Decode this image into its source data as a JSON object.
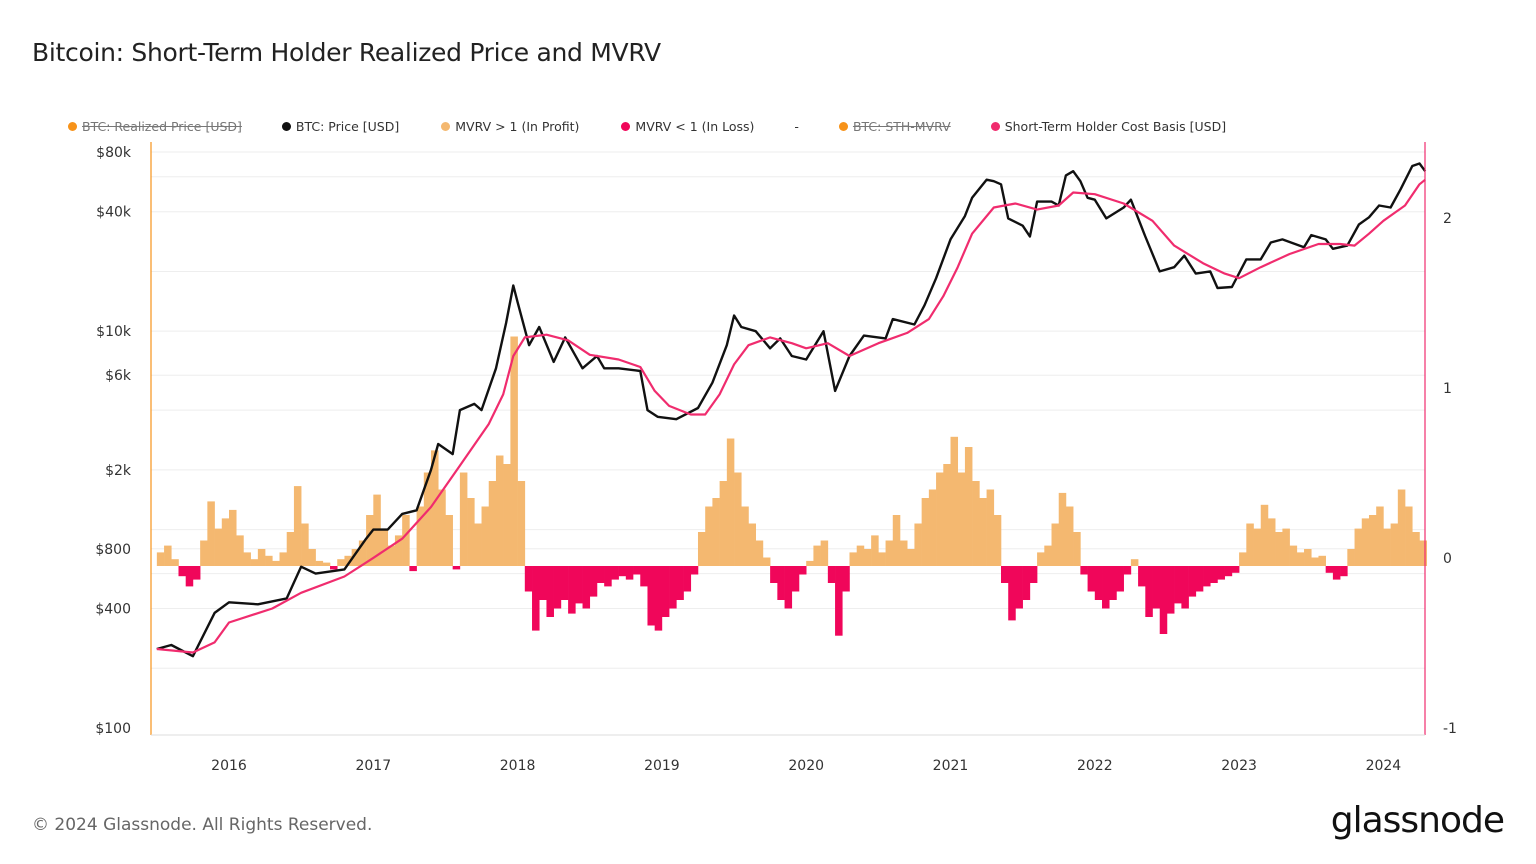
{
  "title": "Bitcoin: Short-Term Holder Realized Price and MVRV",
  "legend": [
    {
      "label": "BTC: Realized Price [USD]",
      "color": "#F7931A",
      "hidden": true
    },
    {
      "label": "BTC: Price [USD]",
      "color": "#111111",
      "hidden": false
    },
    {
      "label": "MVRV > 1 (In Profit)",
      "color": "#F4B870",
      "hidden": false
    },
    {
      "label": "MVRV < 1 (In Loss)",
      "color": "#F0065A",
      "hidden": false
    },
    {
      "label": "-",
      "color": "",
      "hidden": false
    },
    {
      "label": "BTC: STH-MVRV",
      "color": "#F7931A",
      "hidden": true
    },
    {
      "label": "Short-Term Holder Cost Basis [USD]",
      "color": "#F02C6E",
      "hidden": false
    }
  ],
  "footer": "© 2024 Glassnode. All Rights Reserved.",
  "logo": "glassnode",
  "chart_data": {
    "type": "line",
    "title": "Bitcoin: Short-Term Holder Realized Price and MVRV",
    "x_range": [
      2015.46,
      2024.29
    ],
    "x_ticks": [
      "2016",
      "2017",
      "2018",
      "2019",
      "2020",
      "2021",
      "2022",
      "2023",
      "2024"
    ],
    "y_left": {
      "scale": "log",
      "range": [
        100,
        100000
      ],
      "ticks": [
        {
          "v": 80000,
          "label": "$80k"
        },
        {
          "v": 40000,
          "label": "$40k"
        },
        {
          "v": 10000,
          "label": "$10k"
        },
        {
          "v": 6000,
          "label": "$6k"
        },
        {
          "v": 2000,
          "label": "$2k"
        },
        {
          "v": 800,
          "label": "$800"
        },
        {
          "v": 400,
          "label": "$400"
        },
        {
          "v": 100,
          "label": "$100"
        }
      ]
    },
    "y_right": {
      "scale": "linear",
      "range": [
        -1,
        2.5
      ],
      "ticks": [
        "2",
        "1",
        "0",
        "-1"
      ]
    },
    "grid": true,
    "legend_position": "top",
    "series": [
      {
        "name": "BTC: Price [USD]",
        "axis": "left",
        "color": "#111111",
        "x": [
          2015.5,
          2015.6,
          2015.75,
          2015.9,
          2016.0,
          2016.2,
          2016.4,
          2016.5,
          2016.6,
          2016.8,
          2016.95,
          2017.0,
          2017.1,
          2017.2,
          2017.3,
          2017.4,
          2017.45,
          2017.55,
          2017.6,
          2017.7,
          2017.75,
          2017.85,
          2017.92,
          2017.97,
          2018.0,
          2018.08,
          2018.15,
          2018.25,
          2018.33,
          2018.45,
          2018.55,
          2018.6,
          2018.7,
          2018.85,
          2018.9,
          2018.97,
          2019.1,
          2019.25,
          2019.35,
          2019.45,
          2019.5,
          2019.55,
          2019.65,
          2019.75,
          2019.82,
          2019.9,
          2020.0,
          2020.12,
          2020.2,
          2020.3,
          2020.4,
          2020.55,
          2020.6,
          2020.75,
          2020.82,
          2020.9,
          2021.0,
          2021.1,
          2021.15,
          2021.25,
          2021.3,
          2021.35,
          2021.4,
          2021.5,
          2021.55,
          2021.6,
          2021.7,
          2021.75,
          2021.8,
          2021.85,
          2021.9,
          2021.95,
          2022.0,
          2022.08,
          2022.2,
          2022.25,
          2022.35,
          2022.45,
          2022.55,
          2022.62,
          2022.7,
          2022.8,
          2022.85,
          2022.95,
          2023.05,
          2023.15,
          2023.22,
          2023.3,
          2023.45,
          2023.5,
          2023.6,
          2023.65,
          2023.75,
          2023.83,
          2023.9,
          2023.97,
          2024.05,
          2024.12,
          2024.2,
          2024.25,
          2024.29
        ],
        "values": [
          250,
          262,
          230,
          380,
          430,
          420,
          450,
          650,
          600,
          630,
          900,
          1000,
          1000,
          1200,
          1250,
          2000,
          2700,
          2400,
          4000,
          4300,
          4000,
          6500,
          11000,
          17000,
          14000,
          8500,
          10500,
          7000,
          9300,
          6500,
          7500,
          6500,
          6500,
          6300,
          4000,
          3700,
          3600,
          4100,
          5500,
          8500,
          12000,
          10500,
          10000,
          8200,
          9200,
          7500,
          7200,
          10000,
          5000,
          7500,
          9500,
          9200,
          11500,
          10800,
          13500,
          18500,
          29000,
          38000,
          47000,
          58000,
          57000,
          55000,
          37000,
          34000,
          30000,
          45000,
          45000,
          43000,
          61000,
          64000,
          57000,
          47000,
          46000,
          37000,
          42000,
          46000,
          30000,
          20000,
          21000,
          24000,
          19500,
          20000,
          16500,
          16700,
          23000,
          23000,
          28000,
          29000,
          26500,
          30500,
          29000,
          26000,
          27000,
          34500,
          37500,
          43000,
          42000,
          52000,
          68000,
          70000,
          64000
        ]
      },
      {
        "name": "Short-Term Holder Cost Basis [USD]",
        "axis": "left",
        "color": "#F02C6E",
        "x": [
          2015.5,
          2015.75,
          2015.9,
          2016.0,
          2016.3,
          2016.5,
          2016.8,
          2017.0,
          2017.2,
          2017.4,
          2017.6,
          2017.8,
          2017.9,
          2017.97,
          2018.05,
          2018.2,
          2018.35,
          2018.5,
          2018.7,
          2018.85,
          2018.95,
          2019.05,
          2019.2,
          2019.3,
          2019.4,
          2019.5,
          2019.6,
          2019.75,
          2019.9,
          2020.0,
          2020.15,
          2020.3,
          2020.5,
          2020.7,
          2020.85,
          2020.95,
          2021.05,
          2021.15,
          2021.3,
          2021.45,
          2021.6,
          2021.75,
          2021.85,
          2022.0,
          2022.2,
          2022.4,
          2022.55,
          2022.75,
          2022.9,
          2023.0,
          2023.15,
          2023.35,
          2023.55,
          2023.7,
          2023.8,
          2023.9,
          2024.0,
          2024.15,
          2024.25,
          2024.29
        ],
        "values": [
          250,
          240,
          270,
          340,
          400,
          480,
          580,
          720,
          900,
          1300,
          2100,
          3400,
          4800,
          7500,
          9300,
          9600,
          9000,
          7600,
          7200,
          6600,
          5000,
          4200,
          3800,
          3800,
          4800,
          6800,
          8500,
          9300,
          8700,
          8200,
          8700,
          7500,
          8700,
          9800,
          11500,
          15000,
          21000,
          31000,
          42000,
          44000,
          41000,
          43000,
          50000,
          49000,
          44000,
          36000,
          27000,
          22000,
          19500,
          18500,
          21000,
          24500,
          27500,
          27500,
          27000,
          31000,
          36000,
          43000,
          55000,
          58000
        ]
      },
      {
        "name": "BTC: STH-MVRV",
        "axis": "right",
        "type": "bar",
        "positive_label": "MVRV > 1 (In Profit)",
        "negative_label": "MVRV < 1 (In Loss)",
        "x_start": 2015.5,
        "x_step": 0.05,
        "values": [
          0.08,
          0.12,
          0.04,
          -0.06,
          -0.12,
          -0.08,
          0.15,
          0.38,
          0.22,
          0.28,
          0.33,
          0.18,
          0.08,
          0.04,
          0.1,
          0.06,
          0.03,
          0.08,
          0.2,
          0.47,
          0.25,
          0.1,
          0.03,
          0.02,
          -0.02,
          0.04,
          0.06,
          0.1,
          0.15,
          0.3,
          0.42,
          0.22,
          0.12,
          0.18,
          0.3,
          -0.03,
          0.35,
          0.55,
          0.68,
          0.45,
          0.3,
          -0.02,
          0.55,
          0.4,
          0.25,
          0.35,
          0.5,
          0.65,
          0.6,
          1.35,
          0.5,
          -0.15,
          -0.38,
          -0.2,
          -0.3,
          -0.25,
          -0.2,
          -0.28,
          -0.22,
          -0.25,
          -0.18,
          -0.1,
          -0.12,
          -0.08,
          -0.06,
          -0.08,
          -0.05,
          -0.12,
          -0.35,
          -0.38,
          -0.3,
          -0.25,
          -0.2,
          -0.15,
          -0.05,
          0.2,
          0.35,
          0.4,
          0.5,
          0.75,
          0.55,
          0.35,
          0.25,
          0.15,
          0.05,
          -0.1,
          -0.2,
          -0.25,
          -0.15,
          -0.05,
          0.03,
          0.12,
          0.15,
          -0.1,
          -0.41,
          -0.15,
          0.08,
          0.12,
          0.1,
          0.18,
          0.08,
          0.15,
          0.3,
          0.15,
          0.1,
          0.25,
          0.4,
          0.45,
          0.55,
          0.6,
          0.76,
          0.55,
          0.7,
          0.5,
          0.4,
          0.45,
          0.3,
          -0.1,
          -0.32,
          -0.25,
          -0.2,
          -0.1,
          0.08,
          0.12,
          0.25,
          0.43,
          0.35,
          0.2,
          -0.05,
          -0.15,
          -0.2,
          -0.25,
          -0.2,
          -0.15,
          -0.05,
          0.04,
          -0.12,
          -0.3,
          -0.25,
          -0.4,
          -0.28,
          -0.22,
          -0.25,
          -0.18,
          -0.15,
          -0.12,
          -0.1,
          -0.08,
          -0.06,
          -0.04,
          0.08,
          0.25,
          0.22,
          0.36,
          0.28,
          0.2,
          0.22,
          0.12,
          0.08,
          0.1,
          0.05,
          0.06,
          -0.04,
          -0.08,
          -0.06,
          0.1,
          0.22,
          0.28,
          0.3,
          0.35,
          0.22,
          0.25,
          0.45,
          0.35,
          0.2,
          0.15
        ]
      }
    ],
    "colors": {
      "profit": "#F4B870",
      "loss": "#F0065A",
      "left_axis": "#F7931A",
      "right_axis": "#F02C6E"
    }
  }
}
